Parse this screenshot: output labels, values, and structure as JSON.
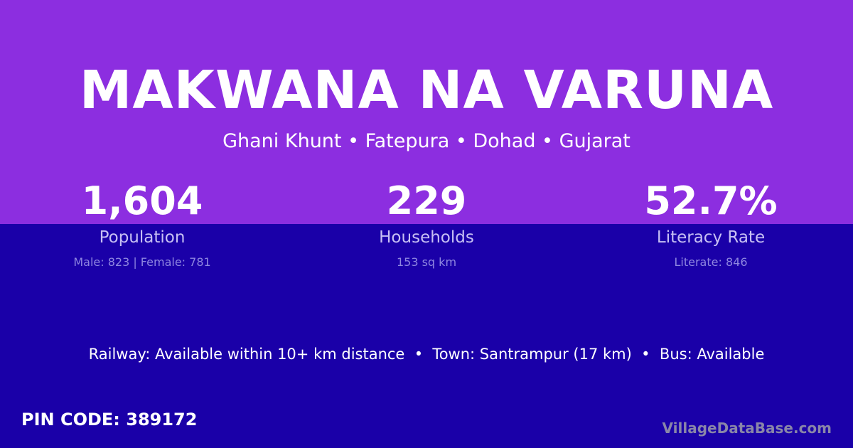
{
  "village_name": "MAKWANA NA VARUNA",
  "location": "Ghani Khunt • Fatepura • Dohad • Gujarat",
  "stats": [
    {
      "value": "1,604",
      "label": "Population",
      "detail": "Male: 823 | Female: 781"
    },
    {
      "value": "229",
      "label": "Households",
      "detail": "153 sq km"
    },
    {
      "value": "52.7%",
      "label": "Literacy Rate",
      "detail": "Literate: 846"
    }
  ],
  "transport": "Railway: Available within 10+ km distance  •  Town: Santrampur (17 km)  •  Bus: Available",
  "pin_code": "PIN CODE: 389172",
  "brand": "VillageDataBase.com",
  "colors": {
    "top": "#8c2ee0",
    "bottom": "#1a00a8"
  }
}
